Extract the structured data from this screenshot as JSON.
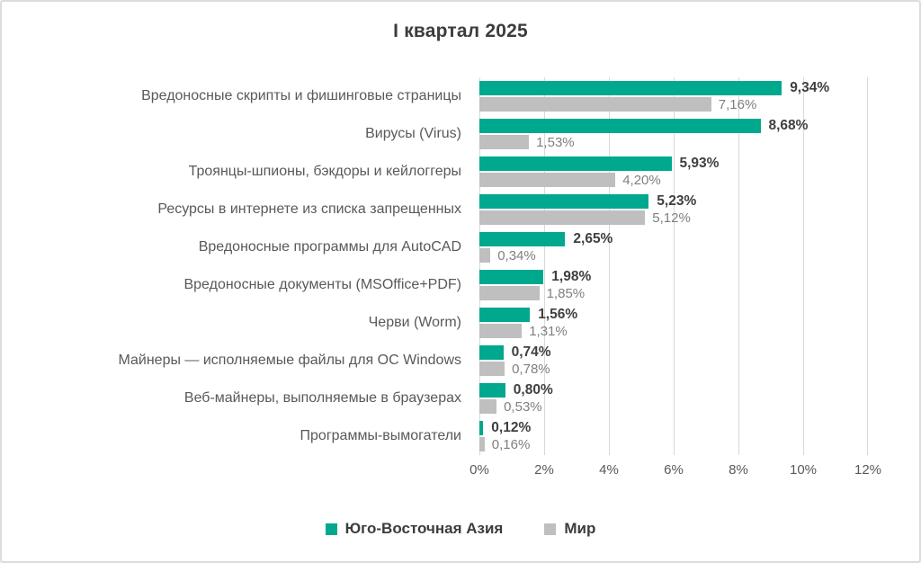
{
  "title": "I квартал 2025",
  "colors": {
    "asia": "#00A88E",
    "world": "#BFBFBF",
    "grid": "#D9D9D9",
    "text_dark": "#3F3F3F",
    "text_medium": "#595959",
    "text_light": "#7F7F7F"
  },
  "chart_data": {
    "type": "bar",
    "orientation": "horizontal",
    "title": "I квартал 2025",
    "categories": [
      "Вредоносные скрипты и фишинговые страницы",
      "Вирусы (Virus)",
      "Троянцы-шпионы, бэкдоры и кейлоггеры",
      "Ресурсы в интернете из списка запрещенных",
      "Вредоносные программы для AutoCAD",
      "Вредоносные документы (MSOffice+PDF)",
      "Черви (Worm)",
      "Майнеры — исполняемые файлы для ОС Windows",
      "Веб-майнеры, выполняемые в браузерах",
      "Программы-вымогатели"
    ],
    "series": [
      {
        "name": "Юго-Восточная Азия",
        "color": "#00A88E",
        "values": [
          9.34,
          8.68,
          5.93,
          5.23,
          2.65,
          1.98,
          1.56,
          0.74,
          0.8,
          0.12
        ],
        "labels": [
          "9,34%",
          "8,68%",
          "5,93%",
          "5,23%",
          "2,65%",
          "1,98%",
          "1,56%",
          "0,74%",
          "0,80%",
          "0,12%"
        ]
      },
      {
        "name": "Мир",
        "color": "#BFBFBF",
        "values": [
          7.16,
          1.53,
          4.2,
          5.12,
          0.34,
          1.85,
          1.31,
          0.78,
          0.53,
          0.16
        ],
        "labels": [
          "7,16%",
          "1,53%",
          "4,20%",
          "5,12%",
          "0,34%",
          "1,85%",
          "1,31%",
          "0,78%",
          "0,53%",
          "0,16%"
        ]
      }
    ],
    "xlim": [
      0,
      12
    ],
    "x_ticks": [
      "0%",
      "2%",
      "4%",
      "6%",
      "8%",
      "10%",
      "12%"
    ],
    "grid": true,
    "legend_position": "bottom"
  },
  "legend": {
    "items": [
      {
        "label": "Юго-Восточная Азия"
      },
      {
        "label": "Мир"
      }
    ]
  }
}
